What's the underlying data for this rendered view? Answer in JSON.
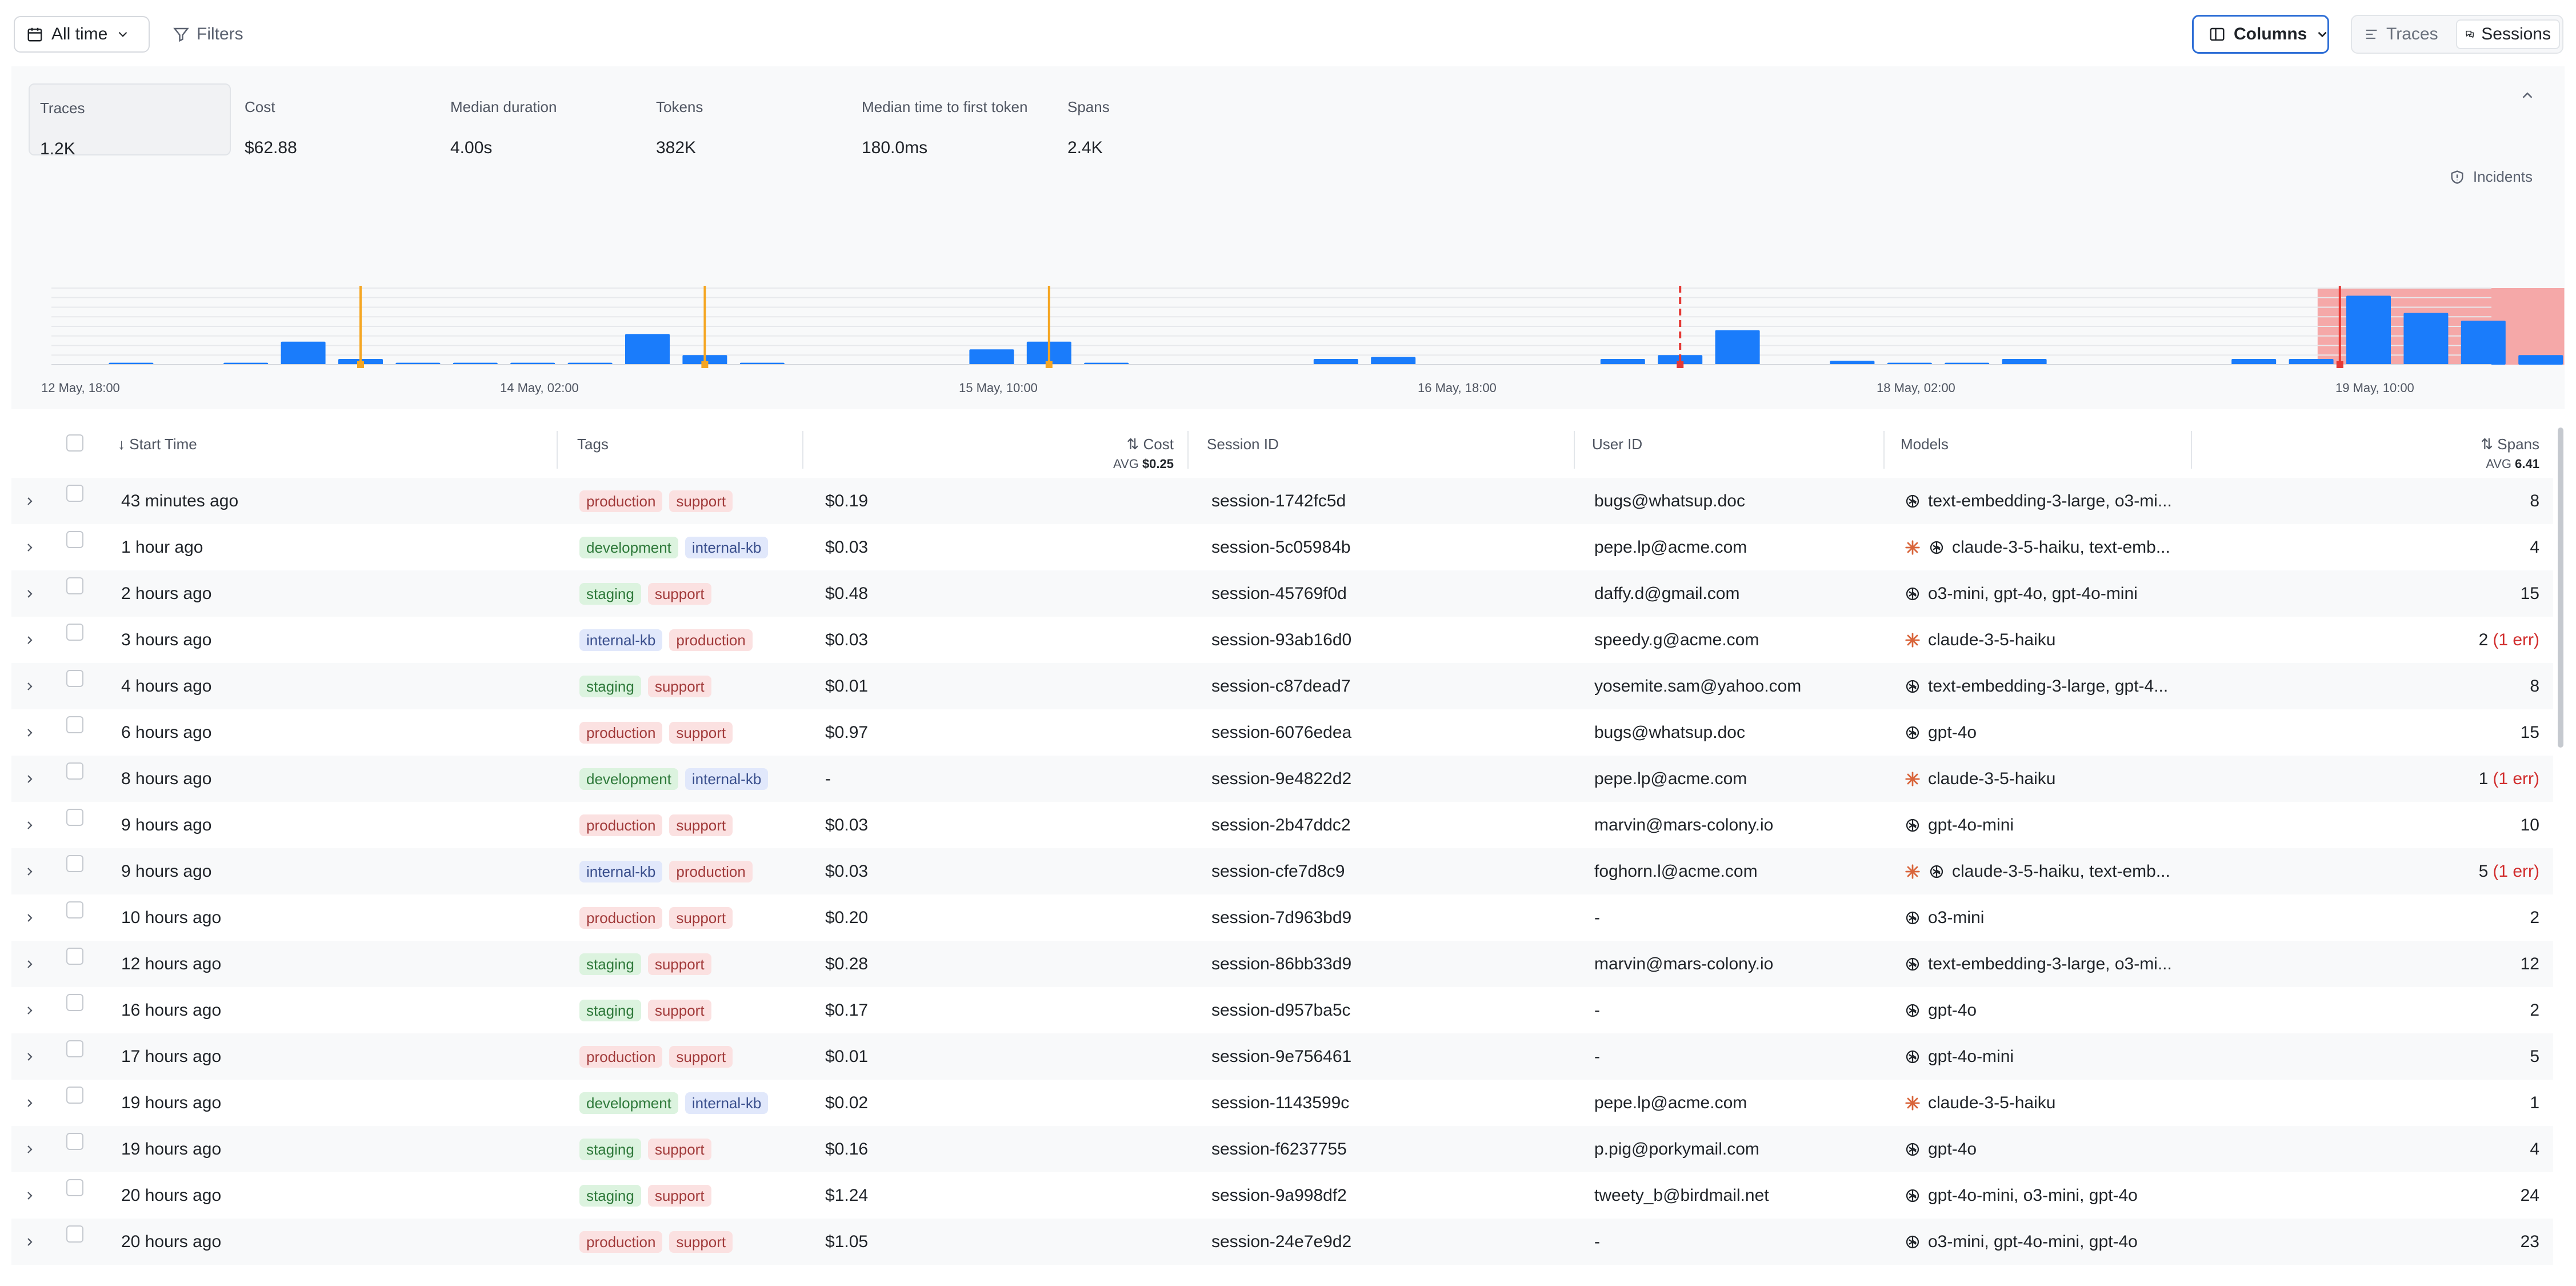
{
  "toolbar": {
    "time_range": "All time",
    "filters_label": "Filters",
    "columns_label": "Columns",
    "view_traces": "Traces",
    "view_sessions": "Sessions"
  },
  "metrics": [
    {
      "label": "Traces",
      "value": "1.2K",
      "active": true
    },
    {
      "label": "Cost",
      "value": "$62.88",
      "active": false
    },
    {
      "label": "Median duration",
      "value": "4.00s",
      "active": false
    },
    {
      "label": "Tokens",
      "value": "382K",
      "active": false
    },
    {
      "label": "Median time to first token",
      "value": "180.0ms",
      "active": false
    },
    {
      "label": "Spans",
      "value": "2.4K",
      "active": false
    }
  ],
  "incidents_label": "Incidents",
  "chart_data": {
    "type": "bar",
    "x_ticks": [
      "12 May, 18:00",
      "14 May, 02:00",
      "15 May, 10:00",
      "16 May, 18:00",
      "18 May, 02:00",
      "19 May, 10:00"
    ],
    "values": [
      0,
      1,
      0,
      1,
      12,
      3,
      1,
      1,
      1,
      1,
      16,
      5,
      1,
      0,
      0,
      0,
      8,
      12,
      1,
      0,
      0,
      0,
      3,
      4,
      0,
      0,
      0,
      3,
      5,
      18,
      0,
      2,
      1,
      1,
      3,
      0,
      0,
      0,
      3,
      3,
      36,
      27,
      23,
      5
    ],
    "ylim": [
      0,
      40
    ],
    "bar_color": "#1a7cfb",
    "markers": [
      {
        "index": 5,
        "style": "solid",
        "color": "#f5a623"
      },
      {
        "index": 11,
        "style": "solid",
        "color": "#f5a623"
      },
      {
        "index": 17,
        "style": "solid",
        "color": "#f5a623"
      },
      {
        "index": 28,
        "style": "dashed",
        "color": "#e53935"
      },
      {
        "index": 39.5,
        "style": "solid",
        "color": "#e53935"
      }
    ],
    "incident_range": [
      39.5,
      43
    ],
    "incident_color": "#f4a3a3"
  },
  "table": {
    "headers": {
      "start_time": "Start Time",
      "tags": "Tags",
      "cost": "Cost",
      "cost_avg_label": "AVG",
      "cost_avg": "$0.25",
      "session_id": "Session ID",
      "user_id": "User ID",
      "models": "Models",
      "spans": "Spans",
      "spans_avg_label": "AVG",
      "spans_avg": "6.41"
    },
    "rows": [
      {
        "time": "43 minutes ago",
        "tags": [
          "production",
          "support"
        ],
        "cost": "$0.19",
        "session": "session-1742fc5d",
        "user": "bugs@whatsup.doc",
        "providers": [
          "openai"
        ],
        "models": "text-embedding-3-large, o3-mi...",
        "spans": "8",
        "err": ""
      },
      {
        "time": "1 hour ago",
        "tags": [
          "development",
          "internal-kb"
        ],
        "cost": "$0.03",
        "session": "session-5c05984b",
        "user": "pepe.lp@acme.com",
        "providers": [
          "anthropic",
          "openai"
        ],
        "models": "claude-3-5-haiku, text-emb...",
        "spans": "4",
        "err": ""
      },
      {
        "time": "2 hours ago",
        "tags": [
          "staging",
          "support"
        ],
        "cost": "$0.48",
        "session": "session-45769f0d",
        "user": "daffy.d@gmail.com",
        "providers": [
          "openai"
        ],
        "models": "o3-mini, gpt-4o, gpt-4o-mini",
        "spans": "15",
        "err": ""
      },
      {
        "time": "3 hours ago",
        "tags": [
          "internal-kb",
          "production"
        ],
        "cost": "$0.03",
        "session": "session-93ab16d0",
        "user": "speedy.g@acme.com",
        "providers": [
          "anthropic"
        ],
        "models": "claude-3-5-haiku",
        "spans": "2",
        "err": "(1 err)"
      },
      {
        "time": "4 hours ago",
        "tags": [
          "staging",
          "support"
        ],
        "cost": "$0.01",
        "session": "session-c87dead7",
        "user": "yosemite.sam@yahoo.com",
        "providers": [
          "openai"
        ],
        "models": "text-embedding-3-large, gpt-4...",
        "spans": "8",
        "err": ""
      },
      {
        "time": "6 hours ago",
        "tags": [
          "production",
          "support"
        ],
        "cost": "$0.97",
        "session": "session-6076edea",
        "user": "bugs@whatsup.doc",
        "providers": [
          "openai"
        ],
        "models": "gpt-4o",
        "spans": "15",
        "err": ""
      },
      {
        "time": "8 hours ago",
        "tags": [
          "development",
          "internal-kb"
        ],
        "cost": "-",
        "session": "session-9e4822d2",
        "user": "pepe.lp@acme.com",
        "providers": [
          "anthropic"
        ],
        "models": "claude-3-5-haiku",
        "spans": "1",
        "err": "(1 err)"
      },
      {
        "time": "9 hours ago",
        "tags": [
          "production",
          "support"
        ],
        "cost": "$0.03",
        "session": "session-2b47ddc2",
        "user": "marvin@mars-colony.io",
        "providers": [
          "openai"
        ],
        "models": "gpt-4o-mini",
        "spans": "10",
        "err": ""
      },
      {
        "time": "9 hours ago",
        "tags": [
          "internal-kb",
          "production"
        ],
        "cost": "$0.03",
        "session": "session-cfe7d8c9",
        "user": "foghorn.l@acme.com",
        "providers": [
          "anthropic",
          "openai"
        ],
        "models": "claude-3-5-haiku, text-emb...",
        "spans": "5",
        "err": "(1 err)"
      },
      {
        "time": "10 hours ago",
        "tags": [
          "production",
          "support"
        ],
        "cost": "$0.20",
        "session": "session-7d963bd9",
        "user": "-",
        "providers": [
          "openai"
        ],
        "models": "o3-mini",
        "spans": "2",
        "err": ""
      },
      {
        "time": "12 hours ago",
        "tags": [
          "staging",
          "support"
        ],
        "cost": "$0.28",
        "session": "session-86bb33d9",
        "user": "marvin@mars-colony.io",
        "providers": [
          "openai"
        ],
        "models": "text-embedding-3-large, o3-mi...",
        "spans": "12",
        "err": ""
      },
      {
        "time": "16 hours ago",
        "tags": [
          "staging",
          "support"
        ],
        "cost": "$0.17",
        "session": "session-d957ba5c",
        "user": "-",
        "providers": [
          "openai"
        ],
        "models": "gpt-4o",
        "spans": "2",
        "err": ""
      },
      {
        "time": "17 hours ago",
        "tags": [
          "production",
          "support"
        ],
        "cost": "$0.01",
        "session": "session-9e756461",
        "user": "-",
        "providers": [
          "openai"
        ],
        "models": "gpt-4o-mini",
        "spans": "5",
        "err": ""
      },
      {
        "time": "19 hours ago",
        "tags": [
          "development",
          "internal-kb"
        ],
        "cost": "$0.02",
        "session": "session-1143599c",
        "user": "pepe.lp@acme.com",
        "providers": [
          "anthropic"
        ],
        "models": "claude-3-5-haiku",
        "spans": "1",
        "err": ""
      },
      {
        "time": "19 hours ago",
        "tags": [
          "staging",
          "support"
        ],
        "cost": "$0.16",
        "session": "session-f6237755",
        "user": "p.pig@porkymail.com",
        "providers": [
          "openai"
        ],
        "models": "gpt-4o",
        "spans": "4",
        "err": ""
      },
      {
        "time": "20 hours ago",
        "tags": [
          "staging",
          "support"
        ],
        "cost": "$1.24",
        "session": "session-9a998df2",
        "user": "tweety_b@birdmail.net",
        "providers": [
          "openai"
        ],
        "models": "gpt-4o-mini, o3-mini, gpt-4o",
        "spans": "24",
        "err": ""
      },
      {
        "time": "20 hours ago",
        "tags": [
          "production",
          "support"
        ],
        "cost": "$1.05",
        "session": "session-24e7e9d2",
        "user": "-",
        "providers": [
          "openai"
        ],
        "models": "o3-mini, gpt-4o-mini, gpt-4o",
        "spans": "23",
        "err": ""
      }
    ]
  }
}
